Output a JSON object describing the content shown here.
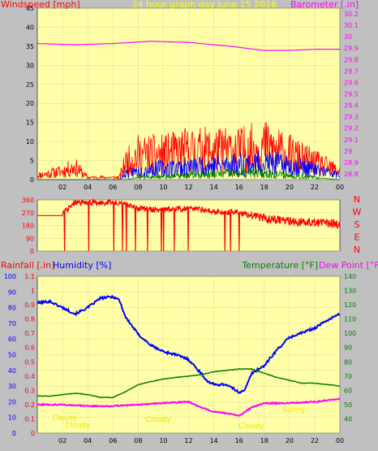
{
  "chart_data": [
    {
      "type": "line",
      "title": "24 hour graph day   June 15 2016",
      "left_axis": {
        "label": "Windspeed [mph]",
        "range": [
          0,
          45
        ],
        "ticks": [
          0,
          5,
          10,
          15,
          20,
          25,
          30,
          35,
          40,
          45
        ]
      },
      "right_axis": {
        "label": "Barometer [.in]",
        "range": [
          28.75,
          30.25
        ],
        "ticks": [
          "28.8",
          "28.9",
          "29",
          "29.1",
          "29.2",
          "29.3",
          "29.4",
          "29.5",
          "29.6",
          "29.7",
          "29.8",
          "29.9",
          "30",
          "30.1",
          "30.2"
        ]
      },
      "x_ticks": [
        "02",
        "04",
        "06",
        "08",
        "10",
        "12",
        "14",
        "16",
        "18",
        "20",
        "22",
        "00"
      ],
      "series": [
        {
          "color": "#ff00ff",
          "x": [
            0,
            3,
            6,
            9,
            12,
            15,
            18,
            20,
            22,
            24
          ],
          "y": [
            29.94,
            29.93,
            29.94,
            29.96,
            29.95,
            29.92,
            29.88,
            29.88,
            29.89,
            29.89
          ]
        },
        {
          "color": "#ff0000",
          "x": [
            0,
            1,
            2,
            3,
            4,
            6.5,
            7,
            8,
            10,
            12,
            14,
            16,
            18,
            20,
            22,
            24
          ],
          "y": [
            1,
            1.5,
            2,
            3,
            0.5,
            0.5,
            4,
            6,
            6,
            7,
            7,
            7,
            8,
            6,
            4,
            2
          ]
        },
        {
          "color": "#0000ff",
          "x": [
            0,
            6.5,
            7,
            9,
            12,
            15,
            18,
            21,
            24
          ],
          "y": [
            0,
            0,
            1.5,
            2.5,
            3,
            3.5,
            4,
            3,
            1
          ]
        },
        {
          "color": "#008000",
          "x": [
            0,
            7,
            8,
            12,
            16,
            18,
            20,
            24
          ],
          "y": [
            0,
            0,
            0.5,
            1,
            1.5,
            1.5,
            1,
            0
          ]
        }
      ]
    },
    {
      "type": "scatter",
      "axis": {
        "range": [
          0,
          360
        ],
        "ticks": [
          0,
          90,
          180,
          270,
          360
        ]
      },
      "compass": [
        "N",
        "W",
        "S",
        "E",
        "N"
      ],
      "series": [
        {
          "color": "#ff0000",
          "x": [
            0,
            1,
            2,
            3,
            5,
            6,
            7,
            8,
            10,
            12,
            14,
            16,
            18,
            20,
            22,
            24
          ],
          "y": [
            250,
            250,
            270,
            340,
            340,
            340,
            330,
            300,
            290,
            300,
            280,
            270,
            230,
            210,
            200,
            190
          ]
        }
      ]
    },
    {
      "type": "line",
      "left_axes": [
        {
          "label": "Rainfall [.in]",
          "color": "#ff0000",
          "range": [
            0,
            1.1
          ],
          "ticks": [
            "0",
            "0.1",
            "0.2",
            "0.3",
            "0.4",
            "0.5",
            "0.6",
            "0.7",
            "0.8",
            "0.9",
            "1",
            "1.1"
          ]
        },
        {
          "label": "Humidity [%]",
          "color": "#0000ff",
          "range": [
            0,
            100
          ],
          "ticks": [
            0,
            10,
            20,
            30,
            40,
            50,
            60,
            70,
            80,
            90,
            100
          ]
        }
      ],
      "right_axes": [
        {
          "label": "Temperature [°F]",
          "color": "#008000"
        },
        {
          "label": "Dew Point [°F]",
          "color": "#ff00ff",
          "range": [
            30,
            140
          ],
          "ticks": [
            40,
            50,
            60,
            70,
            80,
            90,
            100,
            110,
            120,
            130,
            140
          ]
        }
      ],
      "x_ticks": [
        "02",
        "04",
        "06",
        "08",
        "10",
        "12",
        "14",
        "16",
        "18",
        "20",
        "22",
        "00"
      ],
      "series": [
        {
          "color": "#0000ff",
          "axis": "humidity",
          "x": [
            0,
            1,
            2,
            3,
            4,
            5,
            6,
            6.5,
            7,
            8,
            9,
            10,
            11,
            12,
            13,
            13.5,
            14,
            15,
            16,
            16.5,
            17,
            18,
            19,
            20,
            21,
            22,
            23,
            24
          ],
          "y": [
            83,
            84,
            80,
            76,
            80,
            86,
            87,
            85,
            74,
            63,
            56,
            52,
            50,
            47,
            38,
            33,
            31,
            31,
            26,
            28,
            38,
            43,
            53,
            61,
            64,
            67,
            72,
            76
          ]
        },
        {
          "color": "#008000",
          "axis": "temperature",
          "x": [
            0,
            1,
            2,
            3,
            4,
            5,
            6,
            7,
            8,
            9,
            10,
            11,
            12,
            13,
            14,
            15,
            16,
            17,
            18,
            19,
            20,
            21,
            22,
            23,
            24
          ],
          "y": [
            56,
            56,
            57,
            58,
            57,
            55,
            55,
            59,
            64,
            66,
            68,
            69,
            70,
            71,
            73,
            74,
            75,
            75,
            72,
            69,
            67,
            65,
            65,
            64,
            63
          ]
        },
        {
          "color": "#ff00ff",
          "axis": "temperature",
          "x": [
            0,
            2,
            4,
            6,
            8,
            10,
            12,
            13,
            14,
            15,
            16,
            17,
            18,
            20,
            22,
            24
          ],
          "y": [
            50,
            50,
            49,
            49,
            50,
            51,
            52,
            48,
            45,
            44,
            42,
            48,
            51,
            51,
            52,
            54
          ]
        }
      ],
      "annotations": [
        "Cloudy",
        "Cloudy",
        "Cloudy",
        "Cloudy",
        "Sunny"
      ]
    }
  ]
}
